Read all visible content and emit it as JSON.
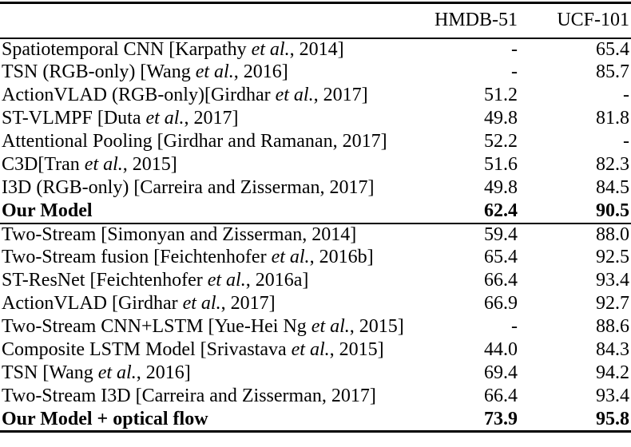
{
  "colors": {
    "background": "#ffffff",
    "text": "#000000",
    "rule": "#000000"
  },
  "table": {
    "columns": [
      "",
      "HMDB-51",
      "UCF-101"
    ],
    "sections": [
      {
        "name": "rgb-only-models",
        "rows": [
          {
            "label": [
              {
                "t": "Spatiotemporal CNN [Karpathy "
              },
              {
                "t": "et al.",
                "i": true
              },
              {
                "t": ", 2014]"
              }
            ],
            "hmdb": "-",
            "ucf": "65.4",
            "bold": false
          },
          {
            "label": [
              {
                "t": "TSN (RGB-only) [Wang "
              },
              {
                "t": "et al.",
                "i": true
              },
              {
                "t": ", 2016]"
              }
            ],
            "hmdb": "-",
            "ucf": "85.7",
            "bold": false
          },
          {
            "label": [
              {
                "t": "ActionVLAD (RGB-only)[Girdhar "
              },
              {
                "t": "et al.",
                "i": true
              },
              {
                "t": ", 2017]"
              }
            ],
            "hmdb": "51.2",
            "ucf": "-",
            "bold": false
          },
          {
            "label": [
              {
                "t": "ST-VLMPF [Duta "
              },
              {
                "t": "et al.",
                "i": true
              },
              {
                "t": ", 2017]"
              }
            ],
            "hmdb": "49.8",
            "ucf": "81.8",
            "bold": false
          },
          {
            "label": [
              {
                "t": "Attentional Pooling [Girdhar and Ramanan, 2017]"
              }
            ],
            "hmdb": "52.2",
            "ucf": "-",
            "bold": false
          },
          {
            "label": [
              {
                "t": "C3D[Tran "
              },
              {
                "t": "et al.",
                "i": true
              },
              {
                "t": ", 2015]"
              }
            ],
            "hmdb": "51.6",
            "ucf": "82.3",
            "bold": false
          },
          {
            "label": [
              {
                "t": "I3D (RGB-only) [Carreira and Zisserman, 2017]"
              }
            ],
            "hmdb": "49.8",
            "ucf": "84.5",
            "bold": false
          },
          {
            "label": [
              {
                "t": "Our Model"
              }
            ],
            "hmdb": "62.4",
            "ucf": "90.5",
            "bold": true
          }
        ]
      },
      {
        "name": "two-stream-models",
        "rows": [
          {
            "label": [
              {
                "t": "Two-Stream [Simonyan and Zisserman, 2014]"
              }
            ],
            "hmdb": "59.4",
            "ucf": "88.0",
            "bold": false
          },
          {
            "label": [
              {
                "t": "Two-Stream fusion [Feichtenhofer "
              },
              {
                "t": "et al.",
                "i": true
              },
              {
                "t": ", 2016b]"
              }
            ],
            "hmdb": "65.4",
            "ucf": "92.5",
            "bold": false
          },
          {
            "label": [
              {
                "t": "ST-ResNet [Feichtenhofer "
              },
              {
                "t": "et al.",
                "i": true
              },
              {
                "t": ", 2016a]"
              }
            ],
            "hmdb": "66.4",
            "ucf": "93.4",
            "bold": false
          },
          {
            "label": [
              {
                "t": "ActionVLAD [Girdhar "
              },
              {
                "t": "et al.",
                "i": true
              },
              {
                "t": ", 2017]"
              }
            ],
            "hmdb": "66.9",
            "ucf": "92.7",
            "bold": false
          },
          {
            "label": [
              {
                "t": "Two-Stream CNN+LSTM [Yue-Hei Ng "
              },
              {
                "t": "et al.",
                "i": true
              },
              {
                "t": ", 2015]"
              }
            ],
            "hmdb": "-",
            "ucf": "88.6",
            "bold": false
          },
          {
            "label": [
              {
                "t": "Composite LSTM Model [Srivastava "
              },
              {
                "t": "et al.",
                "i": true
              },
              {
                "t": ", 2015]"
              }
            ],
            "hmdb": "44.0",
            "ucf": "84.3",
            "bold": false
          },
          {
            "label": [
              {
                "t": "TSN [Wang "
              },
              {
                "t": "et al.",
                "i": true
              },
              {
                "t": ", 2016]"
              }
            ],
            "hmdb": "69.4",
            "ucf": "94.2",
            "bold": false
          },
          {
            "label": [
              {
                "t": "Two-Stream I3D [Carreira and Zisserman, 2017]"
              }
            ],
            "hmdb": "66.4",
            "ucf": "93.4",
            "bold": false
          },
          {
            "label": [
              {
                "t": "Our Model + optical flow"
              }
            ],
            "hmdb": "73.9",
            "ucf": "95.8",
            "bold": true
          }
        ]
      }
    ]
  }
}
